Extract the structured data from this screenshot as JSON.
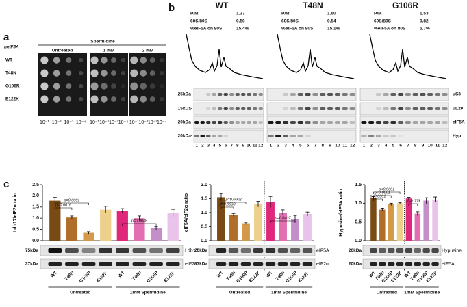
{
  "panel_a": {
    "label": "a",
    "strain_header": "heIF5A",
    "treatment": "Spermidine",
    "conditions": [
      "Untreated",
      "1 mM",
      "2 mM"
    ],
    "strains": [
      "WT",
      "T48N",
      "G106R",
      "E122K"
    ],
    "dilutions": [
      "10⁻¹",
      "10⁻²",
      "10⁻³",
      "10⁻⁴"
    ]
  },
  "panel_b": {
    "label": "b",
    "profiles": [
      {
        "name": "WT",
        "rows": [
          {
            "key": "P/M",
            "value": "1.37"
          },
          {
            "key": "60S/80S",
            "value": "0.50"
          },
          {
            "key": "%eIF5A on 80S",
            "value": "15.4%"
          }
        ]
      },
      {
        "name": "T48N",
        "rows": [
          {
            "key": "P/M",
            "value": "1.60"
          },
          {
            "key": "60S/80S",
            "value": "0.54"
          },
          {
            "key": "%eIF5A on 80S",
            "value": "15.1%"
          }
        ]
      },
      {
        "name": "G106R",
        "rows": [
          {
            "key": "P/M",
            "value": "1.53"
          },
          {
            "key": "60S/80S",
            "value": "0.82"
          },
          {
            "key": "%eIF5A on 80S",
            "value": "5.7%"
          }
        ]
      }
    ],
    "kda": [
      "25kDa-",
      "15kDa-",
      "20kDa-",
      "20kDa-"
    ],
    "proteins": [
      "uS3",
      "uL29",
      "eIF5A",
      "Hyp"
    ],
    "fractions": [
      1,
      2,
      3,
      4,
      5,
      6,
      7,
      8,
      9,
      10,
      11,
      12
    ]
  },
  "panel_c": {
    "label": "c",
    "groups": [
      "Untreated",
      "1mM Spermidine"
    ],
    "categories": [
      "WT",
      "T48N",
      "G106R",
      "E122K",
      "WT",
      "T48N",
      "G106R",
      "E122K"
    ],
    "colors": [
      "#7a4a14",
      "#b06e2a",
      "#d49a4c",
      "#ecd08c",
      "#e0287a",
      "#e26fb2",
      "#c48fc8",
      "#eac3ea"
    ],
    "charts": [
      {
        "y_label": "Ldb17/eIF2α ratio",
        "ylim": [
          0,
          2.5
        ],
        "yticks": [
          {
            "value": 0,
            "label": "0.0"
          },
          {
            "value": 0.5,
            "label": "0.5"
          },
          {
            "value": 1,
            "label": "1.0"
          },
          {
            "value": 1.5,
            "label": "1.5"
          },
          {
            "value": 2,
            "label": "2.0"
          },
          {
            "value": 2.5,
            "label": "2.5"
          }
        ],
        "values": [
          1.78,
          1.03,
          0.35,
          1.38,
          1.33,
          1.0,
          0.55,
          1.22
        ],
        "errors": [
          0.15,
          0.07,
          0.05,
          0.15,
          0.1,
          0.1,
          0.07,
          0.18
        ],
        "p_values": [
          "p=0.0001",
          "p=0.0016",
          "p=0.0048"
        ],
        "blot_kda": [
          "75kDa",
          "37kDa"
        ],
        "blot_names": [
          "Ldb17",
          "eIF2α"
        ]
      },
      {
        "y_label": "eIF5A/eIF2α ratio",
        "ylim": [
          0,
          2.0
        ],
        "yticks": [
          {
            "value": 0,
            "label": "0.0"
          },
          {
            "value": 0.5,
            "label": "0.5"
          },
          {
            "value": 1,
            "label": "1.0"
          },
          {
            "value": 1.5,
            "label": "1.5"
          },
          {
            "value": 2,
            "label": "2.0"
          }
        ],
        "values": [
          1.55,
          0.92,
          0.62,
          1.3,
          1.38,
          1.0,
          0.78,
          0.95
        ],
        "errors": [
          0.13,
          0.05,
          0.04,
          0.1,
          0.2,
          0.1,
          0.12,
          0.07
        ],
        "p_values": [
          "p=0.0002",
          "p=0.0038",
          "p=0.0407"
        ],
        "blot_kda": [
          "20kDa",
          "37kDa"
        ],
        "blot_names": [
          "eIF5A",
          "eIF2α"
        ]
      },
      {
        "y_label": "Hypusine/eIF5A ratio",
        "ylim": [
          0,
          1.5
        ],
        "yticks": [
          {
            "value": 0,
            "label": "0.0"
          },
          {
            "value": 0.5,
            "label": "0.5"
          },
          {
            "value": 1,
            "label": "1.0"
          },
          {
            "value": 1.5,
            "label": "1.5"
          }
        ],
        "values": [
          1.15,
          0.83,
          0.97,
          1.0,
          1.13,
          0.72,
          1.07,
          1.1
        ],
        "errors": [
          0.03,
          0.04,
          0.03,
          0.02,
          0.03,
          0.05,
          0.08,
          0.07
        ],
        "p_values": [
          "p<0.0001",
          "p<0.0001",
          "p<0.0001",
          "p=0.003"
        ],
        "blot_kda": [
          "20kDa",
          "20kDa"
        ],
        "blot_names": [
          "Hypusine",
          "eIF5A"
        ]
      }
    ]
  }
}
